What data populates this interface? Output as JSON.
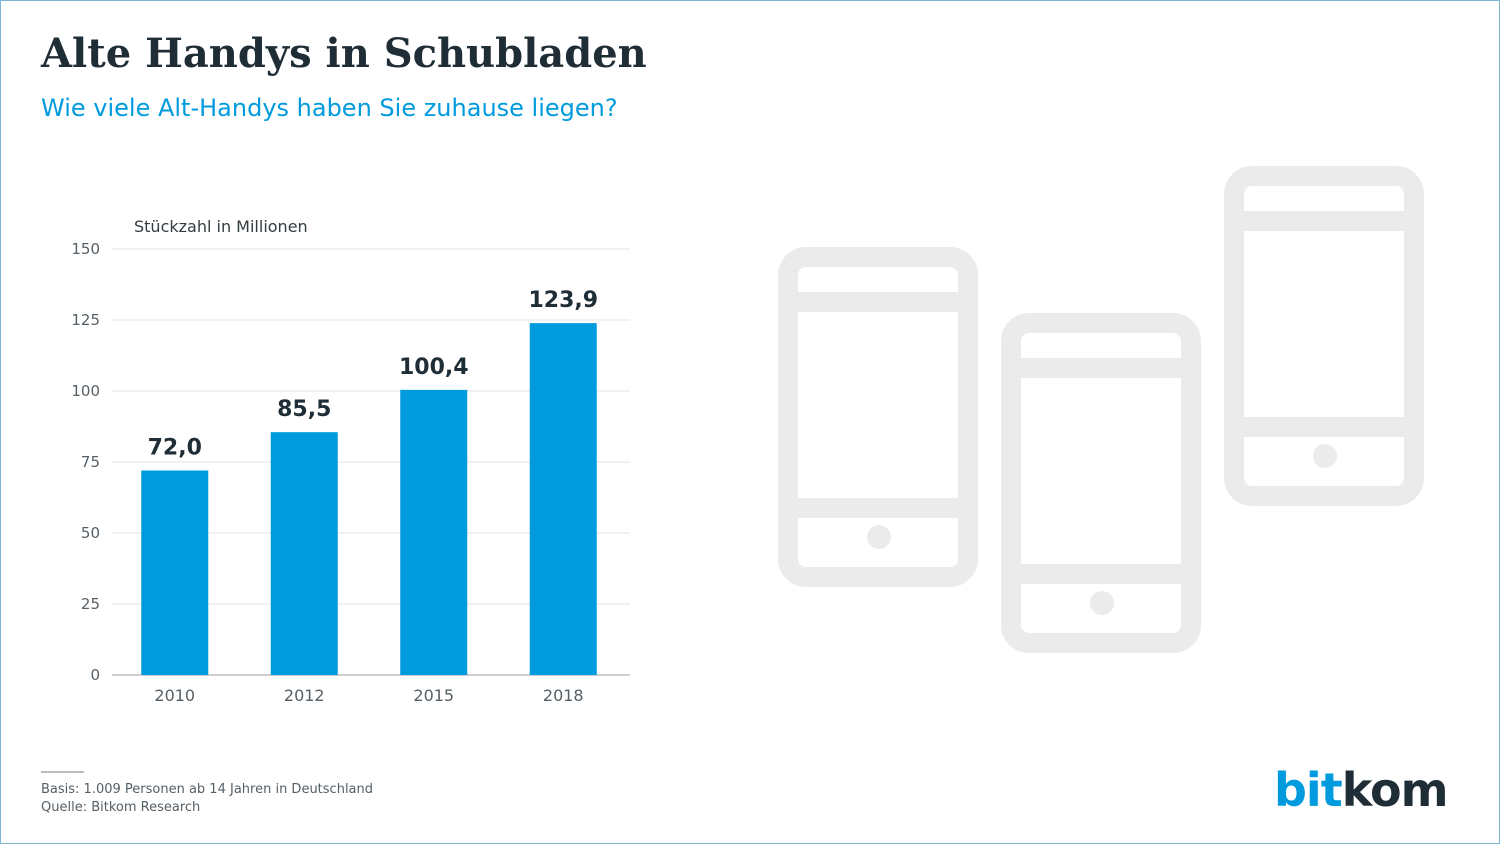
{
  "header": {
    "title": "Alte Handys in Schubladen",
    "subtitle": "Wie viele Alt-Handys haben Sie zuhause liegen?"
  },
  "chart_data": {
    "type": "bar",
    "unit_label": "Stückzahl in Millionen",
    "categories": [
      "2010",
      "2012",
      "2015",
      "2018"
    ],
    "values": [
      72.0,
      85.5,
      100.4,
      123.9
    ],
    "value_labels": [
      "72,0",
      "85,5",
      "100,4",
      "123,9"
    ],
    "yticks": [
      0,
      25,
      50,
      75,
      100,
      125,
      150
    ],
    "ylim": [
      0,
      150
    ],
    "grid": true,
    "bar_color": "#009ade"
  },
  "footer": {
    "basis": "Basis: 1.009 Personen ab 14 Jahren in Deutschland",
    "source": "Quelle: Bitkom Research"
  },
  "logo": {
    "bit": "bit",
    "kom": "kom"
  },
  "illustration": {
    "icon": "smartphone-icon",
    "count": 3,
    "color": "#ebebeb"
  },
  "colors": {
    "title": "#1f2d36",
    "accent": "#009ade",
    "grid": "#e3e3e3"
  }
}
